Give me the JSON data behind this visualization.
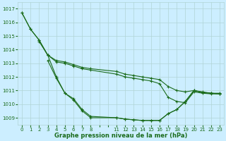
{
  "title": "Graphe pression niveau de la mer (hPa)",
  "bg_color": "#cceeff",
  "grid_color": "#b0d4d4",
  "line_color": "#1a6b1a",
  "marker_color": "#1a6b1a",
  "xlim": [
    -0.5,
    23.5
  ],
  "ylim": [
    1008.5,
    1017.5
  ],
  "yticks": [
    1009,
    1010,
    1011,
    1012,
    1013,
    1014,
    1015,
    1016,
    1017
  ],
  "xticks_all": [
    0,
    1,
    2,
    3,
    4,
    5,
    6,
    7,
    8,
    9,
    10,
    11,
    12,
    13,
    14,
    15,
    16,
    17,
    18,
    19,
    20,
    21,
    22,
    23
  ],
  "xtick_labels": [
    "0",
    "1",
    "2",
    "3",
    "4",
    "5",
    "6",
    "7",
    "8",
    "",
    "",
    "11",
    "12",
    "13",
    "14",
    "15",
    "16",
    "17",
    "18",
    "19",
    "20",
    "21",
    "22",
    "23"
  ],
  "series": [
    {
      "x": [
        0,
        1,
        2,
        3,
        4,
        5,
        6,
        7,
        8,
        11,
        12,
        13,
        14,
        15,
        16,
        17,
        18,
        19,
        20,
        21,
        22,
        23
      ],
      "y": [
        1016.7,
        1015.5,
        1014.7,
        1013.6,
        1013.2,
        1013.1,
        1012.9,
        1012.7,
        1012.6,
        1012.4,
        1012.2,
        1012.1,
        1012.0,
        1011.9,
        1011.8,
        1011.3,
        1011.0,
        1010.9,
        1011.0,
        1010.9,
        1010.8,
        1010.8
      ]
    },
    {
      "x": [
        2,
        3,
        4,
        5,
        6,
        7,
        8,
        11,
        12,
        13,
        14,
        15,
        16,
        17,
        18,
        19,
        20,
        21,
        22,
        23
      ],
      "y": [
        1014.6,
        1013.6,
        1013.1,
        1013.0,
        1012.8,
        1012.6,
        1012.5,
        1012.2,
        1012.0,
        1011.9,
        1011.8,
        1011.7,
        1011.5,
        1010.5,
        1010.2,
        1010.1,
        1010.9,
        1010.8,
        1010.75,
        1010.75
      ]
    },
    {
      "x": [
        0,
        1,
        2,
        3,
        4,
        5,
        6,
        7,
        8,
        11,
        12,
        13,
        14,
        15,
        16,
        17,
        18,
        19,
        20,
        21,
        22,
        23
      ],
      "y": [
        1016.7,
        1015.5,
        1014.7,
        1013.6,
        1012.0,
        1010.8,
        1010.3,
        1009.5,
        1009.0,
        1009.0,
        1008.9,
        1008.85,
        1008.8,
        1008.8,
        1008.8,
        1009.3,
        1009.6,
        1010.2,
        1011.0,
        1010.85,
        1010.8,
        1010.75
      ]
    },
    {
      "x": [
        3,
        4,
        5,
        6,
        7,
        8,
        11,
        12,
        13,
        14,
        15,
        16,
        17,
        18,
        19,
        20,
        21,
        22,
        23
      ],
      "y": [
        1013.2,
        1011.9,
        1010.8,
        1010.4,
        1009.6,
        1009.1,
        1009.0,
        1008.9,
        1008.85,
        1008.8,
        1008.8,
        1008.8,
        1009.3,
        1009.6,
        1010.2,
        1011.0,
        1010.85,
        1010.8,
        1010.75
      ]
    }
  ]
}
